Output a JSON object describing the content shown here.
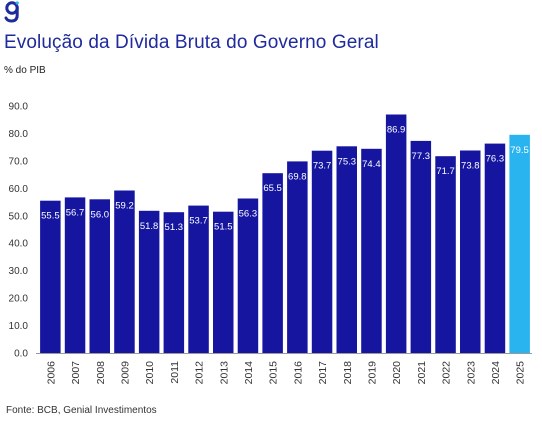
{
  "header": {
    "title": "Evolução da Dívida Bruta do Governo Geral",
    "unit_label": "% do PIB"
  },
  "footer": {
    "source": "Fonte: BCB, Genial Investimentos"
  },
  "colors": {
    "brand": "#1f2a9c",
    "bar_actual": "#1515a0",
    "bar_projection": "#29b4f0",
    "axis_text": "#333333"
  },
  "icons": {
    "logo": "genial-logo-icon"
  },
  "chart_data": {
    "type": "bar",
    "title": "Evolução da Dívida Bruta do Governo Geral",
    "ylabel": "% do PIB",
    "xlabel": "",
    "ylim": [
      0,
      90
    ],
    "yticks": [
      "0.0",
      "10.0",
      "20.0",
      "30.0",
      "40.0",
      "50.0",
      "60.0",
      "70.0",
      "80.0",
      "90.0"
    ],
    "categories": [
      "2006",
      "2007",
      "2008",
      "2009",
      "2010",
      "2011",
      "2012",
      "2013",
      "2014",
      "2015",
      "2016",
      "2017",
      "2018",
      "2019",
      "2020",
      "2021",
      "2022",
      "2023",
      "2024",
      "2025"
    ],
    "values": [
      55.5,
      56.7,
      56.0,
      59.2,
      51.8,
      51.3,
      53.7,
      51.5,
      56.3,
      65.5,
      69.8,
      73.7,
      75.3,
      74.4,
      86.9,
      77.3,
      71.7,
      73.8,
      76.3,
      79.5
    ],
    "data_labels": [
      "55.5",
      "56.7",
      "56.0",
      "59.2",
      "51.8",
      "51.3",
      "53.7",
      "51.5",
      "56.3",
      "65.5",
      "69.8",
      "73.7",
      "75.3",
      "74.4",
      "86.9",
      "77.3",
      "71.7",
      "73.8",
      "76.3",
      "79.5"
    ],
    "highlight_categories": [
      "2025"
    ],
    "grid": false,
    "legend": "none"
  }
}
